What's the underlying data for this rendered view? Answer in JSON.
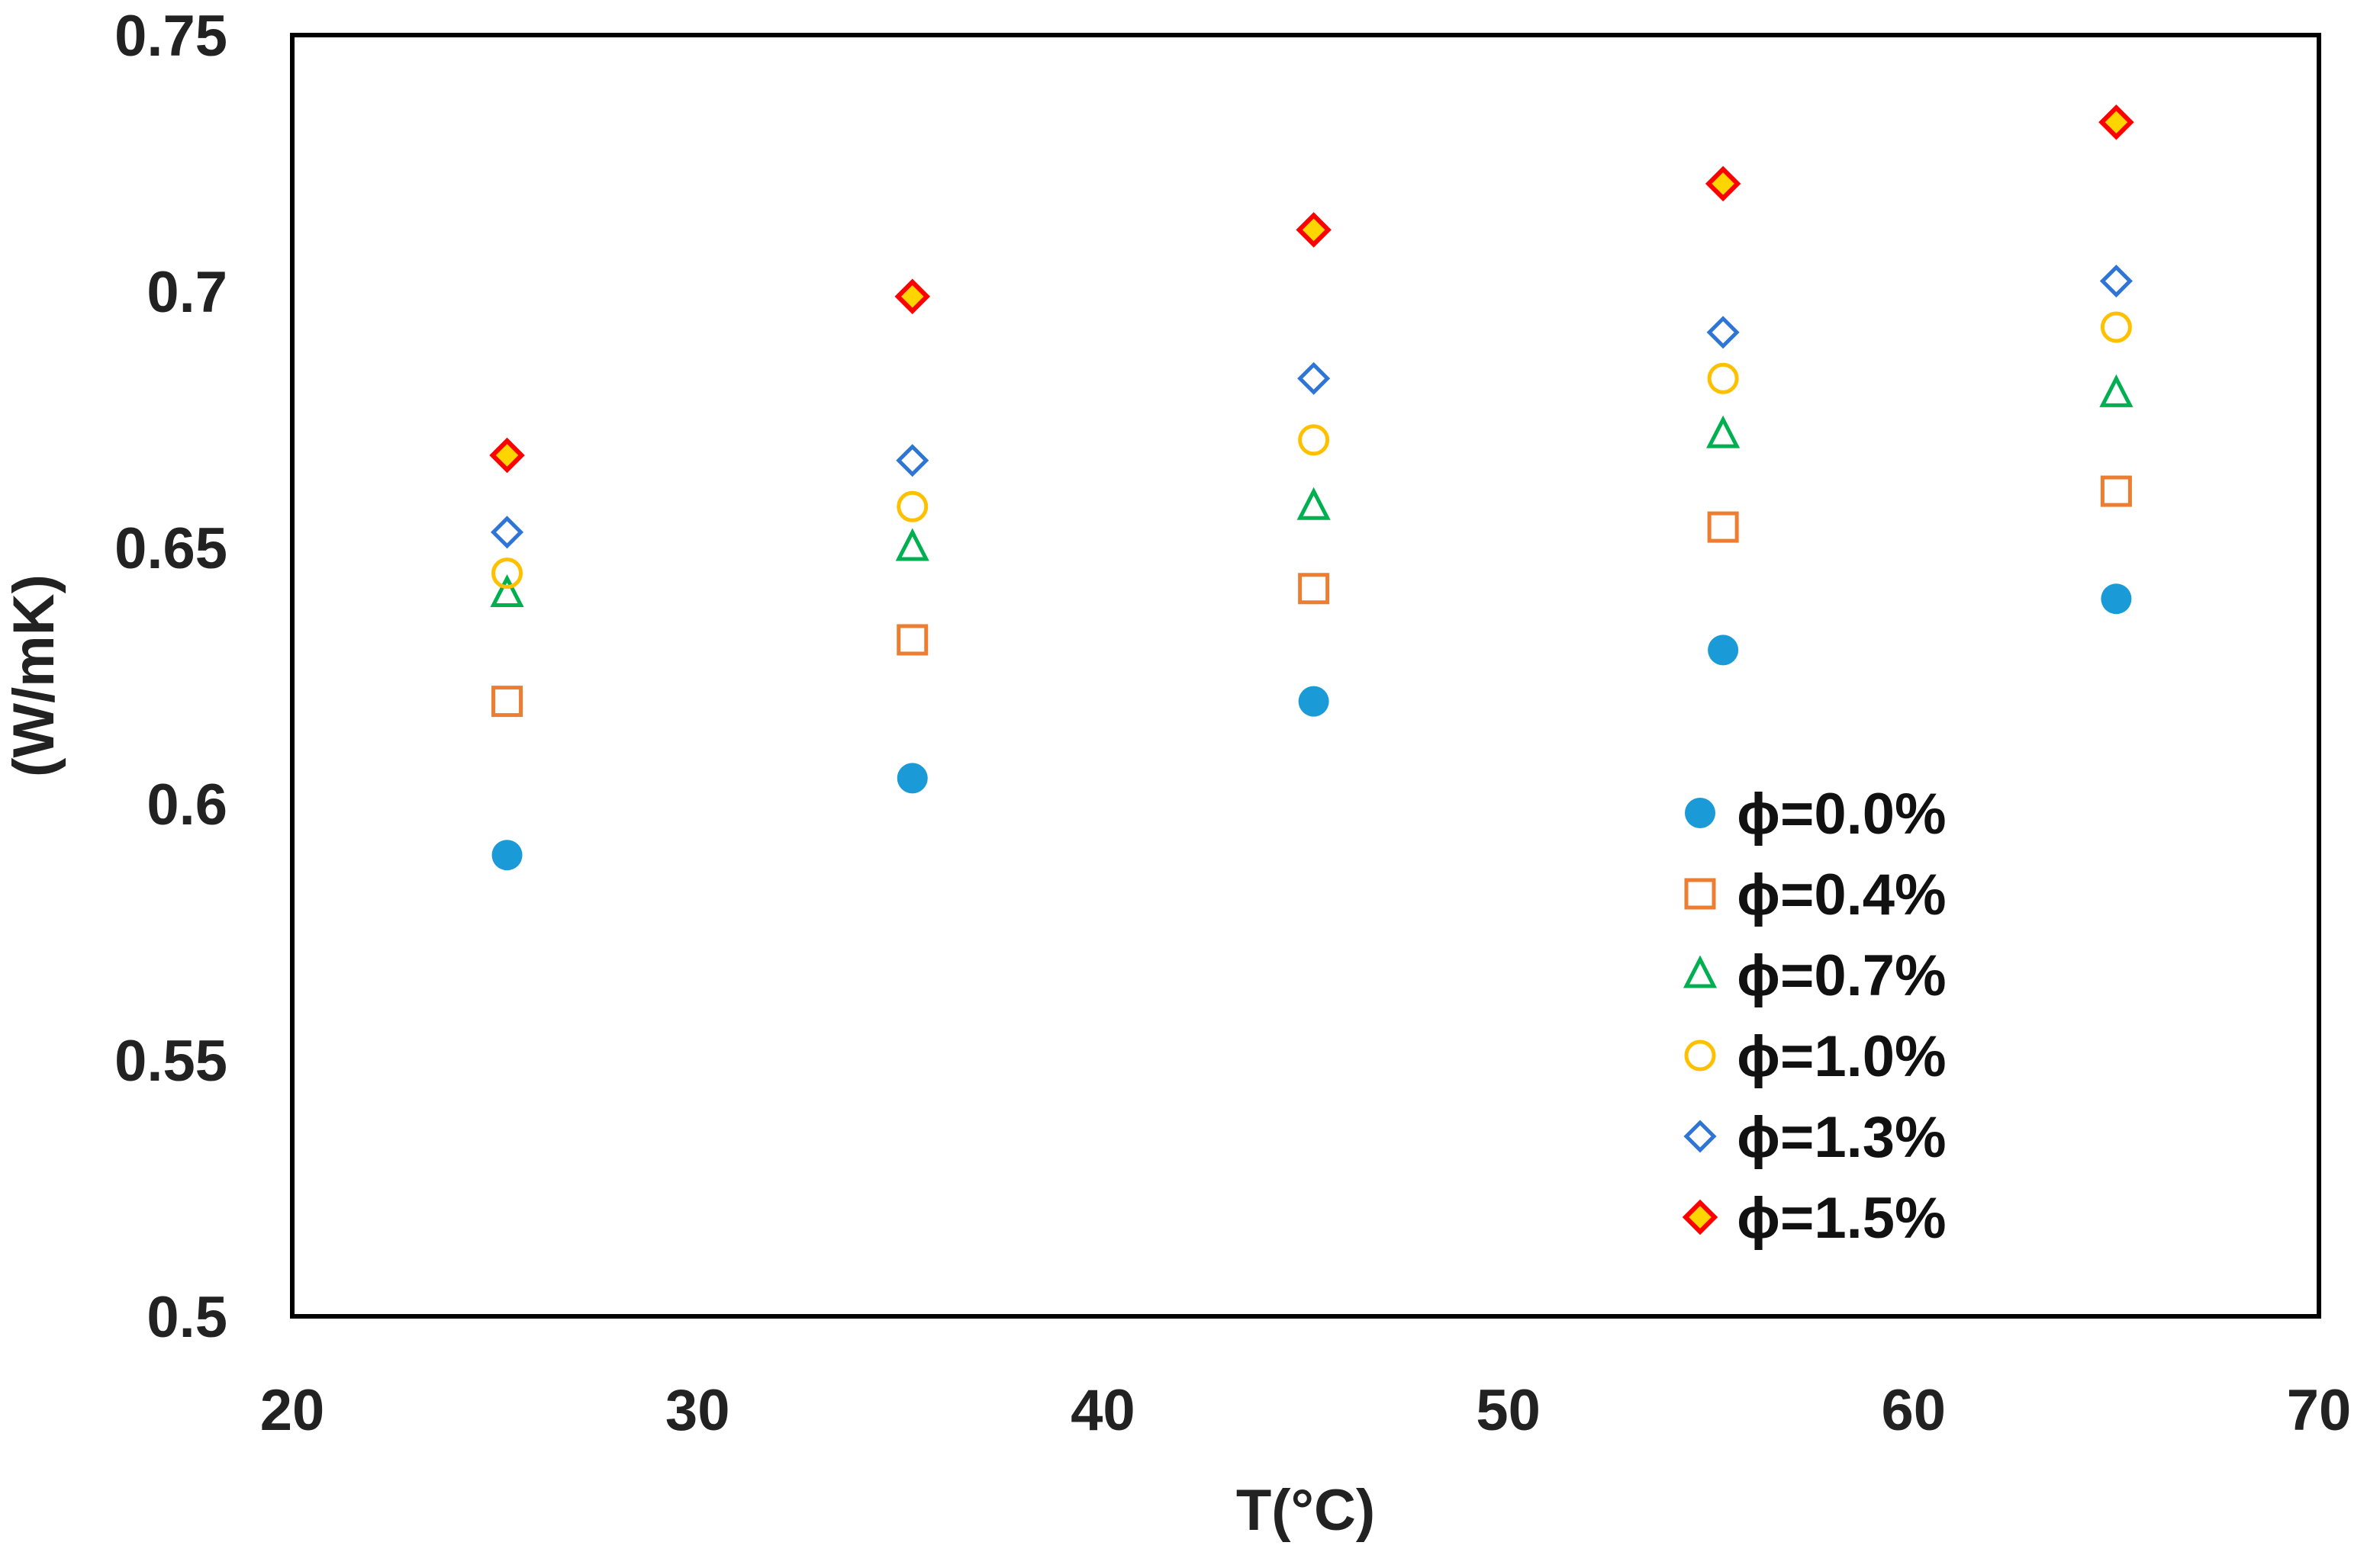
{
  "chart_data": {
    "type": "scatter",
    "title": "",
    "xlabel": "T(°C)",
    "ylabel": "(W/mK)",
    "xlim": [
      20,
      70
    ],
    "ylim": [
      0.5,
      0.75
    ],
    "xticks": [
      20,
      30,
      40,
      50,
      60,
      70
    ],
    "yticks": [
      0.5,
      0.55,
      0.6,
      0.65,
      0.7,
      0.75
    ],
    "xtick_labels": [
      "20",
      "30",
      "40",
      "50",
      "60",
      "70"
    ],
    "ytick_labels": [
      "0.5",
      "0.55",
      "0.6",
      "0.65",
      "0.7",
      "0.75"
    ],
    "grid": false,
    "legend_position": "bottom-right",
    "series": [
      {
        "name": "ϕ=0.0%",
        "marker": "filled-circle",
        "color": "#1a9ad6",
        "fill": "#1a9ad6",
        "x": [
          25.3,
          35.3,
          45.2,
          55.3,
          65.0
        ],
        "y": [
          0.59,
          0.605,
          0.62,
          0.63,
          0.64
        ]
      },
      {
        "name": "ϕ=0.4%",
        "marker": "square",
        "color": "#ed7d31",
        "fill": "none",
        "x": [
          25.3,
          35.3,
          45.2,
          55.3,
          65.0
        ],
        "y": [
          0.62,
          0.632,
          0.642,
          0.654,
          0.661
        ]
      },
      {
        "name": "ϕ=0.7%",
        "marker": "triangle",
        "color": "#00b050",
        "fill": "none",
        "x": [
          25.3,
          35.3,
          45.2,
          55.3,
          65.0
        ],
        "y": [
          0.641,
          0.65,
          0.658,
          0.672,
          0.68
        ]
      },
      {
        "name": "ϕ=1.0%",
        "marker": "circle",
        "color": "#ffc000",
        "fill": "none",
        "x": [
          25.3,
          35.3,
          45.2,
          55.3,
          65.0
        ],
        "y": [
          0.645,
          0.658,
          0.671,
          0.683,
          0.693
        ]
      },
      {
        "name": "ϕ=1.3%",
        "marker": "diamond",
        "color": "#2e75d6",
        "fill": "none",
        "x": [
          25.3,
          35.3,
          45.2,
          55.3,
          65.0
        ],
        "y": [
          0.653,
          0.667,
          0.683,
          0.692,
          0.702
        ]
      },
      {
        "name": "ϕ=1.5%",
        "marker": "filled-diamond",
        "color": "#ff0000",
        "fill": "#ffd500",
        "x": [
          25.3,
          35.3,
          45.2,
          55.3,
          65.0
        ],
        "y": [
          0.668,
          0.699,
          0.712,
          0.721,
          0.733
        ]
      }
    ]
  }
}
